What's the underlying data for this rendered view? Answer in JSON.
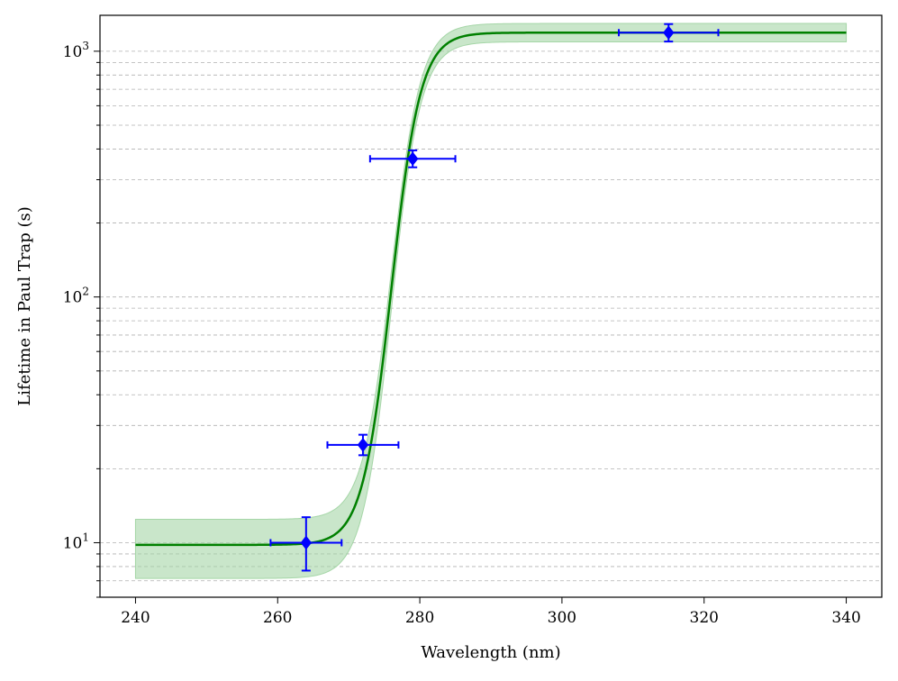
{
  "chart_data": {
    "type": "scatter",
    "title": "",
    "xlabel": "Wavelength (nm)",
    "ylabel": "Lifetime in Paul Trap (s)",
    "xlim": [
      235,
      345
    ],
    "ylim": [
      6,
      1400
    ],
    "yscale": "log",
    "x_ticks": [
      240,
      260,
      280,
      300,
      320,
      340
    ],
    "y_major_ticks": [
      {
        "value": 10,
        "base": "10",
        "exp": "1"
      },
      {
        "value": 100,
        "base": "10",
        "exp": "2"
      },
      {
        "value": 1000,
        "base": "10",
        "exp": "3"
      }
    ],
    "grid": "horizontal dashed at major and minor y ticks",
    "points": [
      {
        "x": 264,
        "y": 10,
        "xerr": 5,
        "yerr_low": 2.3,
        "yerr_high": 2.7
      },
      {
        "x": 272,
        "y": 25,
        "xerr": 5,
        "yerr_low": 2.3,
        "yerr_high": 2.5
      },
      {
        "x": 279,
        "y": 365,
        "xerr": 6,
        "yerr_low": 28,
        "yerr_high": 30
      },
      {
        "x": 315,
        "y": 1190,
        "xerr": 7,
        "yerr_low": 95,
        "yerr_high": 100
      }
    ],
    "fit": {
      "model": "sigmoid in log space",
      "x_range": [
        240,
        340
      ],
      "low": 9.8,
      "high": 1190,
      "center": 276,
      "width": 2.05,
      "band_low_factor": 0.73,
      "band_high_factor": 1.27,
      "band_high_upper_factor": 1.09
    },
    "colors": {
      "points": "#0000ff",
      "fit_line": "#008000",
      "band": "#a5d6a7",
      "grid": "#b0b0b0"
    }
  }
}
